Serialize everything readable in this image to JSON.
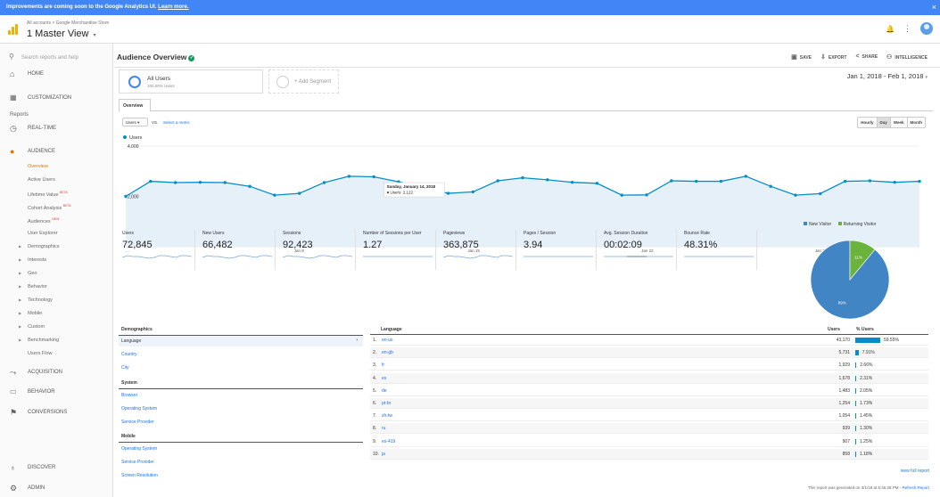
{
  "banner": {
    "text": "Improvements are coming soon to the Google Analytics UI.",
    "link": "Learn more.",
    "close": "×"
  },
  "header": {
    "breadcrumb": "All accounts > Google Merchandise Store",
    "view": "1 Master View",
    "view_caret": "▾",
    "bell": "🔔",
    "more": "⋮"
  },
  "sidebar": {
    "search": "Search reports and help",
    "home": "HOME",
    "customization": "CUSTOMIZATION",
    "reports_label": "Reports",
    "realtime": "REAL-TIME",
    "audience": "AUDIENCE",
    "audience_items": [
      {
        "label": "Overview",
        "tag": ""
      },
      {
        "label": "Active Users",
        "tag": ""
      },
      {
        "label": "Lifetime Value",
        "tag": "BETA"
      },
      {
        "label": "Cohort Analysis",
        "tag": "BETA"
      },
      {
        "label": "Audiences",
        "tag": "NEW"
      },
      {
        "label": "User Explorer",
        "tag": ""
      }
    ],
    "audience_groups": [
      "Demographics",
      "Interests",
      "Geo",
      "Behavior",
      "Technology",
      "Mobile",
      "Custom",
      "Benchmarking"
    ],
    "users_flow": "Users Flow",
    "acquisition": "ACQUISITION",
    "behavior": "BEHAVIOR",
    "conversions": "CONVERSIONS",
    "discover": "DISCOVER",
    "admin": "ADMIN"
  },
  "main": {
    "title": "Audience Overview",
    "actions": {
      "save": "SAVE",
      "export": "EXPORT",
      "share": "SHARE",
      "intelligence": "INTELLIGENCE"
    },
    "segment": {
      "name": "All Users",
      "pct": "100.00% Users",
      "add": "+ Add Segment"
    },
    "date_range": "Jan 1, 2018 - Feb 1, 2018",
    "tab": "Overview",
    "metric_select": "Users",
    "vs": "VS.",
    "select_metric": "Select a metric",
    "granularity": [
      "Hourly",
      "Day",
      "Week",
      "Month"
    ],
    "active_granularity": "Day"
  },
  "chart_data": {
    "type": "area",
    "series": [
      {
        "name": "Users",
        "values": [
          2000,
          2600,
          2550,
          2560,
          2550,
          2400,
          2050,
          2120,
          2550,
          2800,
          2780,
          2580,
          2340,
          2122,
          2180,
          2620,
          2740,
          2660,
          2560,
          2520,
          2050,
          2060,
          2620,
          2600,
          2600,
          2800,
          2400,
          2050,
          2110,
          2600,
          2620,
          2560,
          2600
        ],
        "color": "#058dc7"
      }
    ],
    "ylim": [
      0,
      4000
    ],
    "yticks": [
      "4,000",
      "2,000"
    ],
    "xticks": [
      "...",
      "Jan 8",
      "Jan 15",
      "Jan 22",
      "Jan 29"
    ],
    "tooltip": {
      "date": "Sunday, January 14, 2018",
      "text": "● Users: 2,122"
    }
  },
  "metrics": [
    {
      "label": "Users",
      "value": "72,845"
    },
    {
      "label": "New Users",
      "value": "66,482"
    },
    {
      "label": "Sessions",
      "value": "92,423"
    },
    {
      "label": "Number of Sessions per User",
      "value": "1.27"
    },
    {
      "label": "Pageviews",
      "value": "363,875"
    },
    {
      "label": "Pages / Session",
      "value": "3.94"
    },
    {
      "label": "Avg. Session Duration",
      "value": "00:02:09"
    },
    {
      "label": "Bounce Rate",
      "value": "48.31%"
    }
  ],
  "pie": {
    "legend": [
      "New Visitor",
      "Returning Visitor"
    ],
    "colors": [
      "#4285c4",
      "#6cb33e"
    ],
    "values": [
      89,
      11
    ],
    "labels": [
      "89%",
      "11%"
    ]
  },
  "demographics": {
    "title": "Demographics",
    "selected": "Language",
    "demo_links": [
      "Country",
      "City"
    ],
    "system_title": "System",
    "system_links": [
      "Browser",
      "Operating System",
      "Service Provider"
    ],
    "mobile_title": "Mobile",
    "mobile_links": [
      "Operating System",
      "Service Provider",
      "Screen Resolution"
    ]
  },
  "language_table": {
    "col_language": "Language",
    "col_users": "Users",
    "col_pct": "% Users",
    "rows": [
      {
        "n": "1.",
        "lang": "en-us",
        "users": "43,170",
        "pct": "59.55%",
        "frac": 59.55
      },
      {
        "n": "2.",
        "lang": "en-gb",
        "users": "5,731",
        "pct": "7.91%",
        "frac": 7.91
      },
      {
        "n": "3.",
        "lang": "fr",
        "users": "1,929",
        "pct": "2.66%",
        "frac": 2.66
      },
      {
        "n": "4.",
        "lang": "es",
        "users": "1,678",
        "pct": "2.31%",
        "frac": 2.31
      },
      {
        "n": "5.",
        "lang": "de",
        "users": "1,483",
        "pct": "2.05%",
        "frac": 2.05
      },
      {
        "n": "6.",
        "lang": "pt-br",
        "users": "1,254",
        "pct": "1.73%",
        "frac": 1.73
      },
      {
        "n": "7.",
        "lang": "zh-tw",
        "users": "1,054",
        "pct": "1.45%",
        "frac": 1.45
      },
      {
        "n": "8.",
        "lang": "ru",
        "users": "939",
        "pct": "1.30%",
        "frac": 1.3
      },
      {
        "n": "9.",
        "lang": "es-419",
        "users": "907",
        "pct": "1.25%",
        "frac": 1.25
      },
      {
        "n": "10.",
        "lang": "ja",
        "users": "858",
        "pct": "1.18%",
        "frac": 1.18
      }
    ],
    "view_full": "view full report",
    "generated": "This report was generated on 3/1/18 at 6:46:28 PM -",
    "refresh": "Refresh Report"
  }
}
